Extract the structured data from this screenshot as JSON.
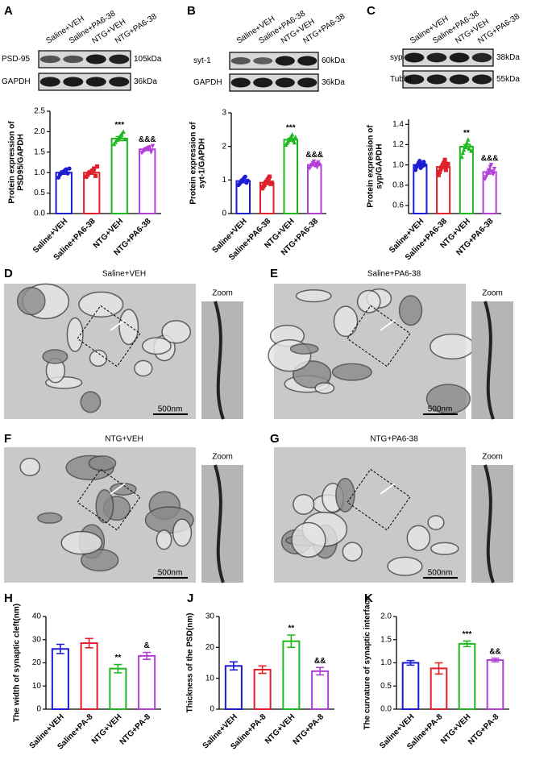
{
  "blots": [
    {
      "letter": "A",
      "lanes": [
        "Saline+VEH",
        "Saline+PA6-38",
        "NTG+VEH",
        "NTG+PA6-38"
      ],
      "rows": [
        {
          "name": "PSD-95",
          "kda": "105kDa"
        },
        {
          "name": "GAPDH",
          "kda": "36kDa"
        }
      ]
    },
    {
      "letter": "B",
      "lanes": [
        "Saline+VEH",
        "Saline+PA6-38",
        "NTG+VEH",
        "NTG+PA6-38"
      ],
      "rows": [
        {
          "name": "syt-1",
          "kda": "60kDa"
        },
        {
          "name": "GAPDH",
          "kda": "36kDa"
        }
      ]
    },
    {
      "letter": "C",
      "lanes": [
        "Saline+VEH",
        "Saline+PA6-38",
        "NTG+VEH",
        "NTG+PA6-38"
      ],
      "rows": [
        {
          "name": "syp",
          "kda": "38kDa"
        },
        {
          "name": "Tublin",
          "kda": "55kDa"
        }
      ]
    }
  ],
  "micrographs": [
    {
      "letter": "D",
      "title": "Saline+VEH",
      "zoom": "Zoom",
      "scale": "500nm"
    },
    {
      "letter": "E",
      "title": "Saline+PA6-38",
      "zoom": "Zoom",
      "scale": "500nm"
    },
    {
      "letter": "F",
      "title": "NTG+VEH",
      "zoom": "Zoom",
      "scale": "500nm"
    },
    {
      "letter": "G",
      "title": "NTG+PA6-38",
      "zoom": "Zoom",
      "scale": "500nm"
    }
  ],
  "chart_data": [
    {
      "type": "bar",
      "ylabel": [
        "Protein expression of",
        "PSD95/GAPDH"
      ],
      "categories": [
        "Saline+VEH",
        "Saline+PA6-38",
        "NTG+VEH",
        "NTG+PA6-38"
      ],
      "colors": [
        "#1c1cd4",
        "#e0202a",
        "#1fb81f",
        "#b23fd6"
      ],
      "values": [
        1.0,
        1.0,
        1.83,
        1.57
      ],
      "errors": [
        0.04,
        0.04,
        0.05,
        0.03
      ],
      "points": [
        [
          0.88,
          0.95,
          1.0,
          1.02,
          1.05,
          1.08,
          0.98,
          1.1
        ],
        [
          0.9,
          0.95,
          1.0,
          1.02,
          1.05,
          1.1,
          0.92,
          1.15
        ],
        [
          1.7,
          1.75,
          1.8,
          1.85,
          1.9,
          1.95,
          2.0,
          1.82
        ],
        [
          1.48,
          1.52,
          1.55,
          1.58,
          1.6,
          1.62,
          1.5,
          1.65
        ]
      ],
      "annotations": [
        null,
        null,
        "***",
        "&&&"
      ],
      "ylim": [
        0,
        2.5
      ],
      "yticks": [
        {
          "value": 0,
          "label": "0.0"
        },
        0.5,
        {
          "value": 1,
          "label": "1.0"
        },
        1.5,
        {
          "value": 2,
          "label": "2.0"
        },
        2.5
      ]
    },
    {
      "type": "bar",
      "ylabel": [
        "Protein expression of",
        "syt-1/GAPDH"
      ],
      "categories": [
        "Saline+VEH",
        "Saline+PA6-38",
        "NTG+VEH",
        "NTG+PA6-38"
      ],
      "colors": [
        "#1c1cd4",
        "#e0202a",
        "#1fb81f",
        "#b23fd6"
      ],
      "values": [
        0.97,
        0.92,
        2.2,
        1.45
      ],
      "errors": [
        0.05,
        0.05,
        0.04,
        0.03
      ],
      "points": [
        [
          0.85,
          0.9,
          0.95,
          1.0,
          1.05,
          1.1,
          0.92,
          0.98
        ],
        [
          0.75,
          0.8,
          0.85,
          0.9,
          0.95,
          1.0,
          1.05,
          1.1,
          0.88,
          0.92
        ],
        [
          2.05,
          2.1,
          2.15,
          2.2,
          2.25,
          2.3,
          2.35,
          2.18,
          2.12,
          2.28
        ],
        [
          1.35,
          1.4,
          1.45,
          1.5,
          1.55,
          1.42,
          1.48,
          1.38,
          1.52,
          1.46
        ]
      ],
      "annotations": [
        null,
        null,
        "***",
        "&&&"
      ],
      "ylim": [
        0,
        3
      ],
      "yticks": [
        0,
        1,
        2,
        3
      ]
    },
    {
      "type": "bar",
      "ylabel": [
        "Protein expression of",
        "syp/GAPDH"
      ],
      "categories": [
        "Saline+VEH",
        "Saline+PA6-38",
        "NTG+VEH",
        "NTG+PA6-38"
      ],
      "colors": [
        "#1c1cd4",
        "#e0202a",
        "#1fb81f",
        "#b23fd6"
      ],
      "values": [
        1.0,
        0.98,
        1.18,
        0.93
      ],
      "errors": [
        0.01,
        0.015,
        0.02,
        0.02
      ],
      "points": [
        [
          0.95,
          0.98,
          1.0,
          1.02,
          1.04,
          0.97,
          1.01,
          0.99,
          1.03,
          1.0
        ],
        [
          0.9,
          0.93,
          0.96,
          0.98,
          1.0,
          1.02,
          1.05,
          0.95,
          0.99,
          1.01
        ],
        [
          1.08,
          1.12,
          1.15,
          1.18,
          1.2,
          1.22,
          1.25,
          1.16,
          1.19,
          1.14
        ],
        [
          0.86,
          0.88,
          0.9,
          0.92,
          0.95,
          0.98,
          1.0,
          0.93,
          0.91,
          0.96
        ]
      ],
      "annotations": [
        null,
        null,
        "**",
        "&&&"
      ],
      "ylim": [
        0.52,
        1.45
      ],
      "yticks": [
        0.6,
        0.8,
        {
          "value": 1,
          "label": "1.0"
        },
        1.2,
        1.4
      ]
    },
    {
      "type": "bar",
      "letter": "H",
      "ylabel": [
        "The width of synaptic cleft(nm)"
      ],
      "categories": [
        "Saline+VEH",
        "Saline+PA-8",
        "NTG+VEH",
        "NTG+PA-8"
      ],
      "colors": [
        "#1c1cd4",
        "#e0202a",
        "#1fb81f",
        "#b23fd6"
      ],
      "values": [
        26,
        28.5,
        17.5,
        23
      ],
      "errors": [
        2,
        2,
        1.8,
        1.5
      ],
      "annotations": [
        null,
        null,
        "**",
        "&"
      ],
      "ylim": [
        0,
        40
      ],
      "yticks": [
        0,
        10,
        20,
        30,
        40
      ]
    },
    {
      "type": "bar",
      "letter": "J",
      "ylabel": [
        "Thickness of the PSD(nm)"
      ],
      "categories": [
        "Saline+VEH",
        "Saline+PA-8",
        "NTG+VEH",
        "NTG+PA-8"
      ],
      "colors": [
        "#1c1cd4",
        "#e0202a",
        "#1fb81f",
        "#b23fd6"
      ],
      "values": [
        14,
        12.8,
        22,
        12.3
      ],
      "errors": [
        1.3,
        1.2,
        2,
        1.2
      ],
      "annotations": [
        null,
        null,
        "**",
        "&&"
      ],
      "ylim": [
        0,
        30
      ],
      "yticks": [
        0,
        10,
        20,
        30
      ]
    },
    {
      "type": "bar",
      "letter": "K",
      "ylabel": [
        "The curvature of synaptic interface"
      ],
      "categories": [
        "Saline+VEH",
        "Saline+PA-8",
        "NTG+VEH",
        "NTG+PA-8"
      ],
      "colors": [
        "#1c1cd4",
        "#e0202a",
        "#1fb81f",
        "#b23fd6"
      ],
      "values": [
        1.0,
        0.88,
        1.41,
        1.06
      ],
      "errors": [
        0.05,
        0.12,
        0.06,
        0.04
      ],
      "annotations": [
        null,
        null,
        "***",
        "&&"
      ],
      "ylim": [
        0,
        2
      ],
      "yticks": [
        {
          "value": 0,
          "label": "0.0"
        },
        0.5,
        {
          "value": 1,
          "label": "1.0"
        },
        1.5,
        {
          "value": 2,
          "label": "2.0"
        }
      ]
    }
  ]
}
